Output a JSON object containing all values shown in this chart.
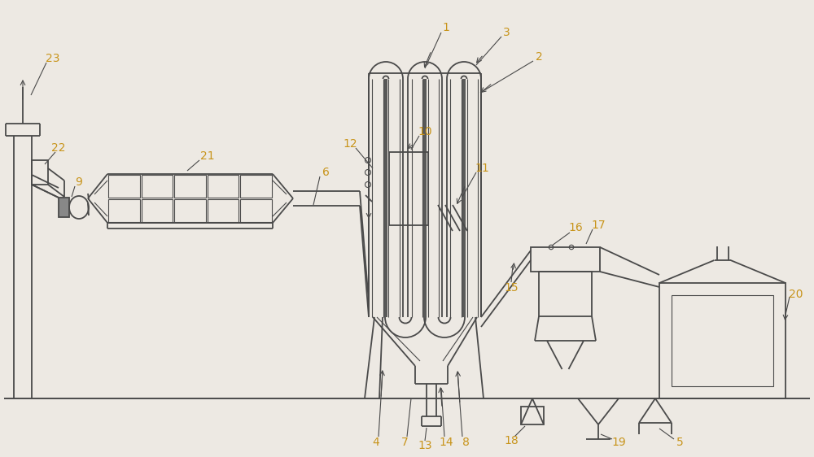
{
  "bg_color": "#ede9e3",
  "line_color": "#4a4a4a",
  "lw": 1.3,
  "tlw": 0.8,
  "label_color": "#c8941a",
  "fs": 10,
  "figsize": [
    10.0,
    5.62
  ],
  "dpi": 100
}
